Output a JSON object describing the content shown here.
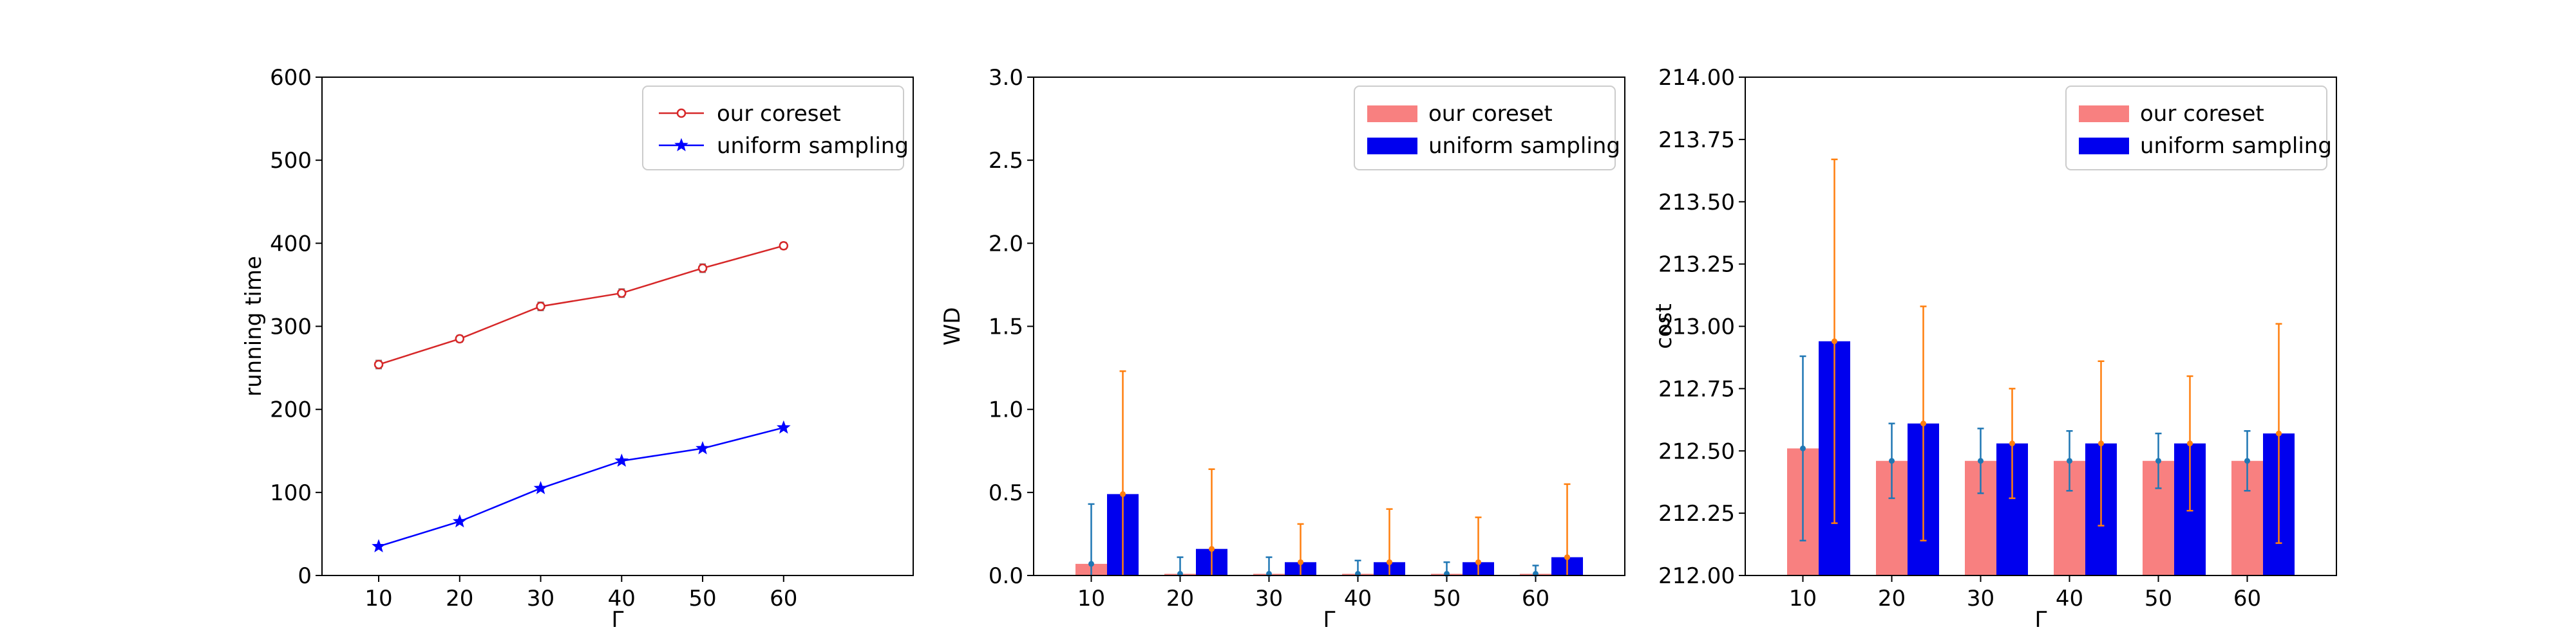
{
  "chart_data": [
    {
      "type": "line",
      "xlabel": "Γ",
      "ylabel": "running time",
      "x": [
        10,
        20,
        30,
        40,
        50,
        60
      ],
      "xticks": [
        "10",
        "20",
        "30",
        "40",
        "50",
        "60"
      ],
      "xlim": [
        3,
        76
      ],
      "ylim": [
        0,
        600
      ],
      "yticks": [
        "0",
        "100",
        "200",
        "300",
        "400",
        "500",
        "600"
      ],
      "legend_position": "top-right",
      "series": [
        {
          "name": "our coreset",
          "values": [
            254,
            285,
            324,
            340,
            370,
            397
          ],
          "errors": [
            5,
            4,
            5,
            5,
            5,
            4
          ],
          "color": "#d62728",
          "marker": "circle"
        },
        {
          "name": "uniform sampling",
          "values": [
            35,
            65,
            105,
            138,
            153,
            178
          ],
          "errors": [
            2,
            2,
            2,
            2,
            2,
            2
          ],
          "color": "#0000ff",
          "marker": "star"
        }
      ]
    },
    {
      "type": "bar",
      "xlabel": "Γ",
      "ylabel": "WD",
      "categories": [
        "10",
        "20",
        "30",
        "40",
        "50",
        "60"
      ],
      "ylim": [
        0,
        3.0
      ],
      "yticks": [
        "0.0",
        "0.5",
        "1.0",
        "1.5",
        "2.0",
        "2.5",
        "3.0"
      ],
      "legend_position": "top-right",
      "series": [
        {
          "name": "our coreset",
          "values": [
            0.07,
            0.01,
            0.01,
            0.01,
            0.01,
            0.01
          ],
          "errors": [
            0.36,
            0.1,
            0.1,
            0.08,
            0.07,
            0.05
          ],
          "color": "#f88080",
          "error_color": "#1f77b4"
        },
        {
          "name": "uniform sampling",
          "values": [
            0.49,
            0.16,
            0.08,
            0.08,
            0.08,
            0.11
          ],
          "errors": [
            0.74,
            0.48,
            0.23,
            0.32,
            0.27,
            0.44
          ],
          "color": "#0000ee",
          "error_color": "#ff7f0e"
        }
      ]
    },
    {
      "type": "bar",
      "xlabel": "Γ",
      "ylabel": "cost",
      "categories": [
        "10",
        "20",
        "30",
        "40",
        "50",
        "60"
      ],
      "ylim": [
        212.0,
        214.0
      ],
      "yticks": [
        "212.00",
        "212.25",
        "212.50",
        "212.75",
        "213.00",
        "213.25",
        "213.50",
        "213.75",
        "214.00"
      ],
      "legend_position": "top-right",
      "series": [
        {
          "name": "our coreset",
          "values": [
            212.51,
            212.46,
            212.46,
            212.46,
            212.46,
            212.46
          ],
          "errors": [
            0.37,
            0.15,
            0.13,
            0.12,
            0.11,
            0.12
          ],
          "color": "#f88080",
          "error_color": "#1f77b4"
        },
        {
          "name": "uniform sampling",
          "values": [
            212.94,
            212.61,
            212.53,
            212.53,
            212.53,
            212.57
          ],
          "errors": [
            0.73,
            0.47,
            0.22,
            0.33,
            0.27,
            0.44
          ],
          "color": "#0000ee",
          "error_color": "#ff7f0e"
        }
      ]
    }
  ]
}
